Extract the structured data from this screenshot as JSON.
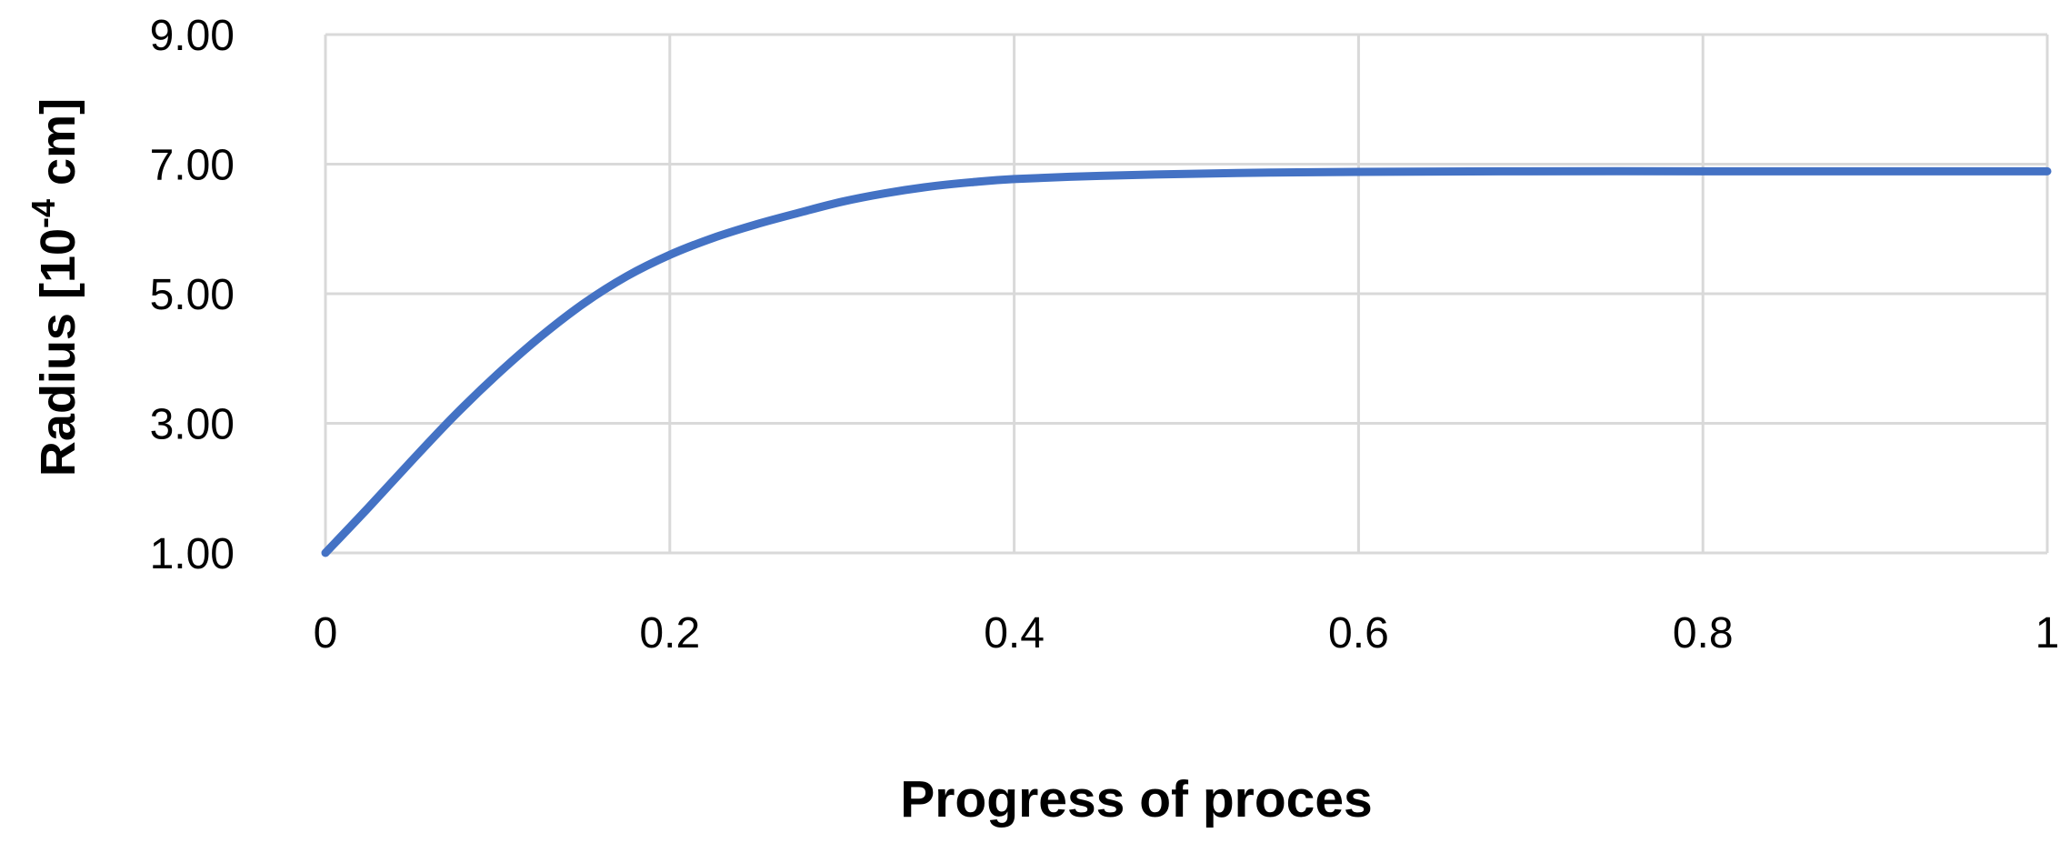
{
  "chart_data": {
    "type": "line",
    "title": "",
    "xlabel": "Progress of proces",
    "ylabel": "Radius [10",
    "ylabel_exponent": "-4",
    "ylabel_unit": " cm]",
    "xlim": [
      0,
      1
    ],
    "ylim": [
      1,
      9
    ],
    "x_ticks": [
      0,
      0.2,
      0.4,
      0.6,
      0.8,
      1
    ],
    "x_tick_labels": [
      "0",
      "0.2",
      "0.4",
      "0.6",
      "0.8",
      "1"
    ],
    "y_ticks": [
      1,
      3,
      5,
      7,
      9
    ],
    "y_tick_labels": [
      "1.00",
      "3.00",
      "5.00",
      "7.00",
      "9.00"
    ],
    "grid": true,
    "legend": "none",
    "colors": {
      "series": "#4472C4",
      "grid": "#D9D9D9",
      "text": "#000000"
    },
    "series": [
      {
        "x": [
          0,
          0.025,
          0.05,
          0.075,
          0.1,
          0.125,
          0.15,
          0.175,
          0.2,
          0.225,
          0.25,
          0.275,
          0.3,
          0.325,
          0.35,
          0.375,
          0.4,
          0.45,
          0.5,
          0.55,
          0.6,
          0.7,
          0.8,
          0.9,
          1.0
        ],
        "values": [
          1.0,
          1.7,
          2.42,
          3.12,
          3.76,
          4.34,
          4.85,
          5.27,
          5.6,
          5.86,
          6.07,
          6.25,
          6.42,
          6.55,
          6.65,
          6.72,
          6.77,
          6.82,
          6.85,
          6.87,
          6.88,
          6.89,
          6.89,
          6.89,
          6.89
        ]
      }
    ]
  }
}
